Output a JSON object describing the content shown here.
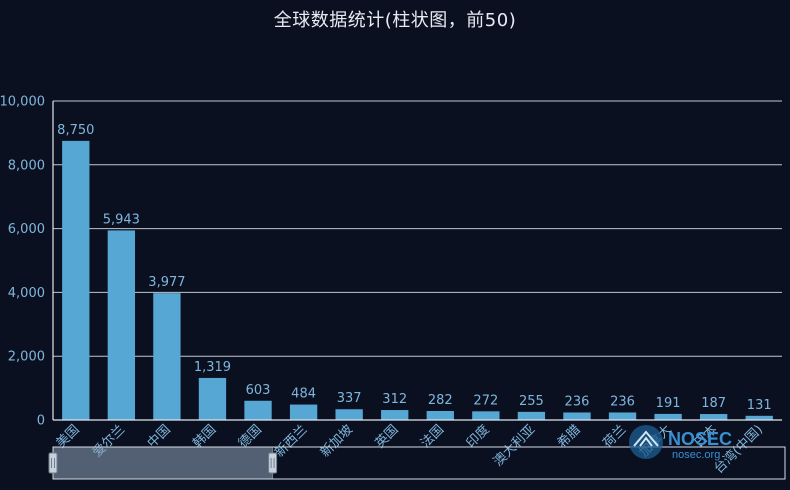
{
  "chart_data": {
    "type": "bar",
    "title": "全球数据统计(柱状图，前50)",
    "categories": [
      "美国",
      "爱尔兰",
      "中国",
      "韩国",
      "德国",
      "新西兰",
      "新加坡",
      "英国",
      "法国",
      "印度",
      "澳大利亚",
      "希腊",
      "荷兰",
      "加拿大",
      "日本",
      "台湾(中国)"
    ],
    "values": [
      8750,
      5943,
      3977,
      1319,
      603,
      484,
      337,
      312,
      282,
      272,
      255,
      236,
      236,
      191,
      187,
      131
    ],
    "value_labels": [
      "8,750",
      "5,943",
      "3,977",
      "1,319",
      "603",
      "484",
      "337",
      "312",
      "282",
      "272",
      "255",
      "236",
      "236",
      "191",
      "187",
      "131"
    ],
    "yticks": [
      "0",
      "2,000",
      "4,000",
      "6,000",
      "8,000",
      "10,000"
    ],
    "ylim": [
      0,
      10000
    ],
    "grid": true,
    "colors": {
      "bar": "#56a7d3",
      "background": "#0b1020",
      "text": "#7fb6dc",
      "grid": "#dfe6ef"
    },
    "datazoom": {
      "start_fraction": 0.0,
      "end_fraction": 0.3
    }
  },
  "watermark": {
    "brand": "NOSEC",
    "site": "nosec.org",
    "icon": "nosec-logo-icon"
  }
}
